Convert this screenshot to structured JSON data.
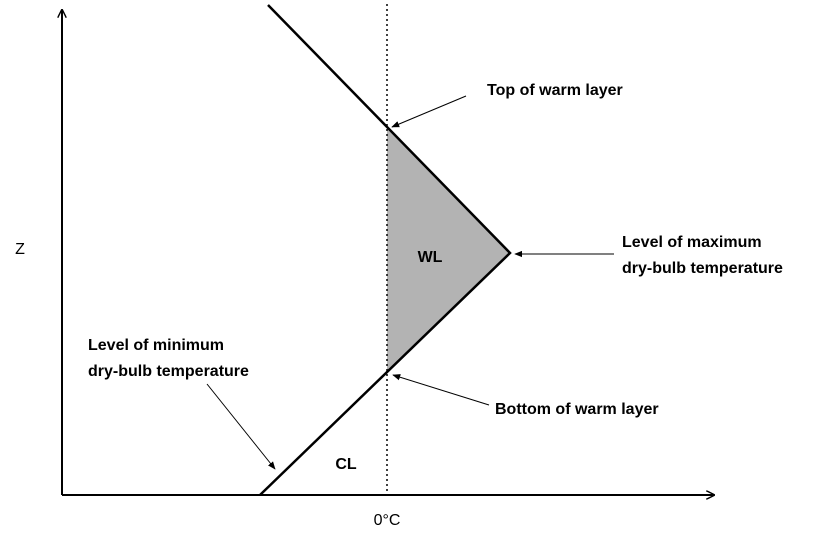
{
  "axes": {
    "y_label": "Z",
    "x_label": "0°C"
  },
  "regions": {
    "warm": "WL",
    "cold": "CL"
  },
  "annotations": {
    "top": "Top of warm layer",
    "max": [
      "Level of maximum",
      "dry-bulb temperature"
    ],
    "min": [
      "Level of minimum",
      "dry-bulb temperature"
    ],
    "bottom": "Bottom of warm layer"
  }
}
